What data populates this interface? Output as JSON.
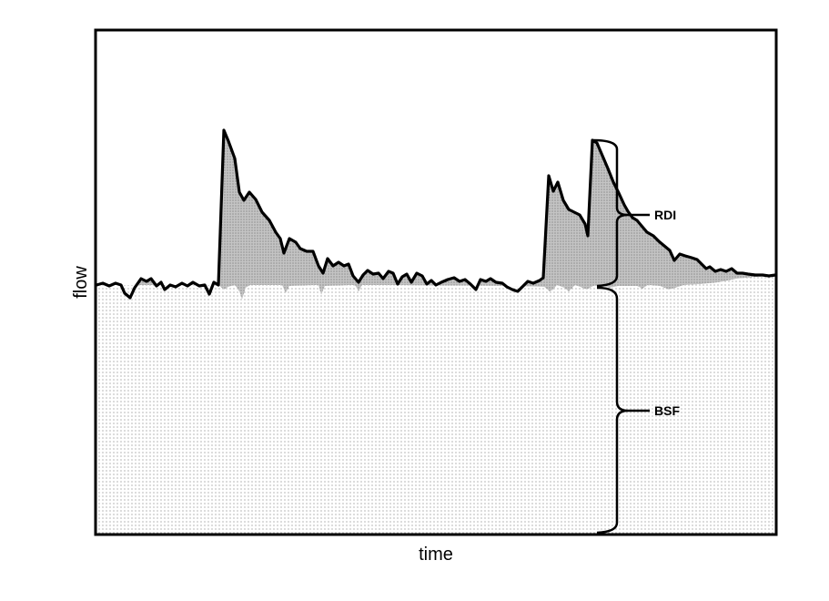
{
  "diagram": {
    "x_axis_label": "time",
    "y_axis_label": "flow",
    "annotations": {
      "rdi": "RDI",
      "bsf": "BSF"
    },
    "colors": {
      "flow_line": "#000000",
      "rdi_fill": "#b8b8b8",
      "bsf_dots": "#555555",
      "frame": "#000000"
    }
  }
}
